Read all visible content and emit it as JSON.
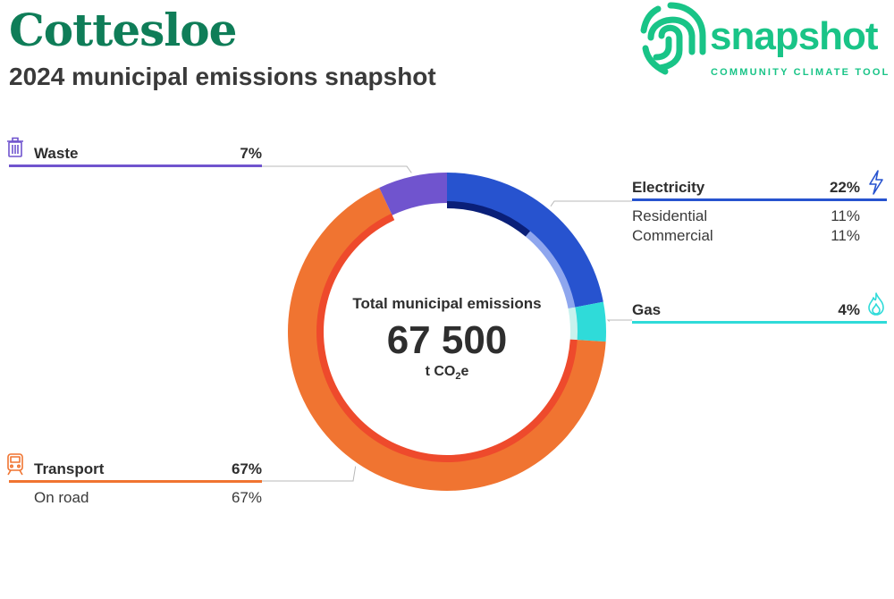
{
  "header": {
    "title": "Cottesloe",
    "subtitle": "2024 municipal emissions snapshot"
  },
  "logo": {
    "word": "snapshot",
    "tagline": "COMMUNITY CLIMATE TOOL",
    "color": "#19c487"
  },
  "chart_data": {
    "type": "pie",
    "title": "",
    "center": {
      "label": "Total municipal emissions",
      "value": "67 500",
      "unit_prefix": "t CO",
      "unit_sub": "2",
      "unit_suffix": "e"
    },
    "categories": [
      {
        "key": "electricity",
        "name": "Electricity",
        "value": 22,
        "pct_label": "22%",
        "color": "#2753cf",
        "icon": "lightning-icon",
        "subs": [
          {
            "name": "Residential",
            "value": 11,
            "pct_label": "11%",
            "color": "#0a1f78"
          },
          {
            "name": "Commercial",
            "value": 11,
            "pct_label": "11%",
            "color": "#8ea6ee"
          }
        ]
      },
      {
        "key": "gas",
        "name": "Gas",
        "value": 4,
        "pct_label": "4%",
        "color": "#2fdbd9",
        "icon": "flame-icon",
        "inner_color": "#c8f2ee",
        "subs": []
      },
      {
        "key": "transport",
        "name": "Transport",
        "value": 67,
        "pct_label": "67%",
        "color": "#f07431",
        "icon": "train-icon",
        "subs": [
          {
            "name": "On road",
            "value": 67,
            "pct_label": "67%",
            "color": "#ee4a2c"
          }
        ]
      },
      {
        "key": "waste",
        "name": "Waste",
        "value": 7,
        "pct_label": "7%",
        "color": "#7054ce",
        "icon": "bin-icon",
        "subs": []
      }
    ]
  }
}
